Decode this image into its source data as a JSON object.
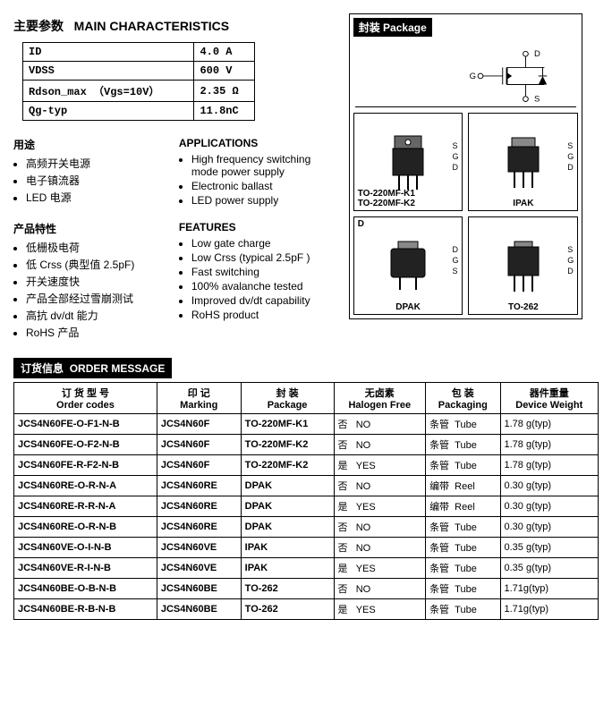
{
  "headings": {
    "main_params_cn": "主要参数",
    "main_params_en": "MAIN  CHARACTERISTICS",
    "usage_cn": "用途",
    "usage_en": "APPLICATIONS",
    "features_cn": "产品特性",
    "features_en": "FEATURES",
    "package_cn": "封装",
    "package_en": "Package",
    "order_cn": "订货信息",
    "order_en": "ORDER MESSAGE"
  },
  "spec_table": {
    "rows": [
      {
        "param": "ID",
        "value": "4.0 A"
      },
      {
        "param": "VDSS",
        "value": "600 V"
      },
      {
        "param": "Rdson_max （Vgs=10V）",
        "value": "2.35 Ω"
      },
      {
        "param": "Qg-typ",
        "value": "11.8nC"
      }
    ]
  },
  "applications_cn": [
    "高频开关电源",
    "电子镇流器",
    "LED 电源"
  ],
  "applications_en": [
    "High frequency switching mode power supply",
    "Electronic ballast",
    "LED power supply"
  ],
  "features_cn_list": [
    "低栅极电荷",
    "低 Crss (典型值 2.5pF)",
    "开关速度快",
    "产品全部经过雪崩测试",
    "高抗 dv/dt 能力",
    "RoHS 产品"
  ],
  "features_en_list": [
    "Low gate charge",
    "Low Crss (typical 2.5pF )",
    "Fast switching",
    "100% avalanche tested",
    "Improved dv/dt capability",
    "RoHS product"
  ],
  "schematic_pins": {
    "d": "D",
    "g": "G",
    "s": "S"
  },
  "packages": [
    {
      "name": "TO-220MF-K1\nTO-220MF-K2",
      "pins": [
        "S",
        "G",
        "D"
      ],
      "pos": "left"
    },
    {
      "name": "IPAK",
      "pins": [
        "S",
        "G",
        "D"
      ],
      "pos": "center"
    },
    {
      "name": "DPAK",
      "pins": [
        "D",
        "G",
        "S"
      ],
      "pos": "center"
    },
    {
      "name": "TO-262",
      "pins": [
        "S",
        "G",
        "D"
      ],
      "pos": "center"
    }
  ],
  "order_table": {
    "headers": {
      "order_codes_cn": "订 货 型 号",
      "order_codes_en": "Order codes",
      "marking_cn": "印      记",
      "marking_en": "Marking",
      "package_cn": "封      装",
      "package_en": "Package",
      "halogen_cn": "无卤素",
      "halogen_en": "Halogen Free",
      "packaging_cn": "包      装",
      "packaging_en": "Packaging",
      "weight_cn": "器件重量",
      "weight_en": "Device Weight"
    },
    "rows": [
      {
        "code": "JCS4N60FE-O-F1-N-B",
        "mark": "JCS4N60F",
        "pkg": "TO-220MF-K1",
        "hal_cn": "否",
        "hal_en": "NO",
        "pack_cn": "条管",
        "pack_en": "Tube",
        "wt": "1.78 g(typ)"
      },
      {
        "code": "JCS4N60FE-O-F2-N-B",
        "mark": "JCS4N60F",
        "pkg": "TO-220MF-K2",
        "hal_cn": "否",
        "hal_en": "NO",
        "pack_cn": "条管",
        "pack_en": "Tube",
        "wt": "1.78 g(typ)"
      },
      {
        "code": "JCS4N60FE-R-F2-N-B",
        "mark": "JCS4N60F",
        "pkg": "TO-220MF-K2",
        "hal_cn": "是",
        "hal_en": "YES",
        "pack_cn": "条管",
        "pack_en": "Tube",
        "wt": "1.78 g(typ)"
      },
      {
        "code": "JCS4N60RE-O-R-N-A",
        "mark": "JCS4N60RE",
        "pkg": "DPAK",
        "hal_cn": "否",
        "hal_en": "NO",
        "pack_cn": "编带",
        "pack_en": "Reel",
        "wt": "0.30 g(typ)"
      },
      {
        "code": "JCS4N60RE-R-R-N-A",
        "mark": "JCS4N60RE",
        "pkg": "DPAK",
        "hal_cn": "是",
        "hal_en": "YES",
        "pack_cn": "编带",
        "pack_en": "Reel",
        "wt": "0.30 g(typ)"
      },
      {
        "code": "JCS4N60RE-O-R-N-B",
        "mark": "JCS4N60RE",
        "pkg": "DPAK",
        "hal_cn": "否",
        "hal_en": "NO",
        "pack_cn": "条管",
        "pack_en": "Tube",
        "wt": "0.30 g(typ)"
      },
      {
        "code": "JCS4N60VE-O-I-N-B",
        "mark": "JCS4N60VE",
        "pkg": "IPAK",
        "hal_cn": "否",
        "hal_en": "NO",
        "pack_cn": "条管",
        "pack_en": "Tube",
        "wt": "0.35 g(typ)"
      },
      {
        "code": "JCS4N60VE-R-I-N-B",
        "mark": "JCS4N60VE",
        "pkg": "IPAK",
        "hal_cn": "是",
        "hal_en": "YES",
        "pack_cn": "条管",
        "pack_en": "Tube",
        "wt": "0.35 g(typ)"
      },
      {
        "code": "JCS4N60BE-O-B-N-B",
        "mark": "JCS4N60BE",
        "pkg": "TO-262",
        "hal_cn": "否",
        "hal_en": "NO",
        "pack_cn": "条管",
        "pack_en": "Tube",
        "wt": "1.71g(typ)"
      },
      {
        "code": "JCS4N60BE-R-B-N-B",
        "mark": "JCS4N60BE",
        "pkg": "TO-262",
        "hal_cn": "是",
        "hal_en": "YES",
        "pack_cn": "条管",
        "pack_en": "Tube",
        "wt": "1.71g(typ)"
      }
    ]
  }
}
